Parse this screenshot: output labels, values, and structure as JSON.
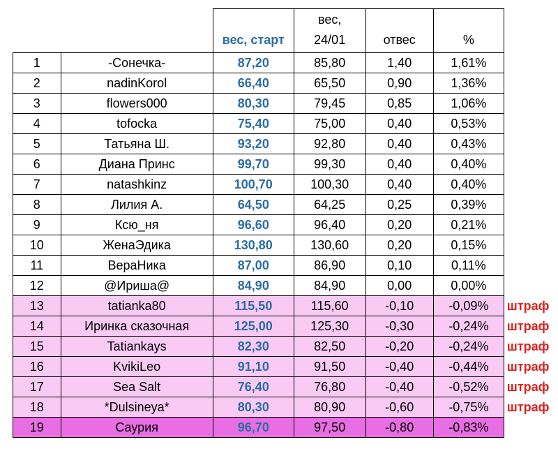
{
  "headers": {
    "num": "",
    "name": "",
    "start": "вес, старт",
    "current_line1": "вес,",
    "current_line2": "24/01",
    "loss": "отвес",
    "percent": "%"
  },
  "colors": {
    "start_text": "#2a6ca6",
    "penalty_text": "#e0201f",
    "penalty_row_bg": "#f8caf4",
    "last_row_bg": "#e96ee3"
  },
  "rows": [
    {
      "num": "1",
      "name": "-Сонечка-",
      "start": "87,20",
      "current": "85,80",
      "loss": "1,40",
      "percent": "1,61%",
      "note": ""
    },
    {
      "num": "2",
      "name": "nadinKorol",
      "start": "66,40",
      "current": "65,50",
      "loss": "0,90",
      "percent": "1,36%",
      "note": ""
    },
    {
      "num": "3",
      "name": "flowers000",
      "start": "80,30",
      "current": "79,45",
      "loss": "0,85",
      "percent": "1,06%",
      "note": ""
    },
    {
      "num": "4",
      "name": "tofocka",
      "start": "75,40",
      "current": "75,00",
      "loss": "0,40",
      "percent": "0,53%",
      "note": ""
    },
    {
      "num": "5",
      "name": "Татьяна Ш.",
      "start": "93,20",
      "current": "92,80",
      "loss": "0,40",
      "percent": "0,43%",
      "note": ""
    },
    {
      "num": "6",
      "name": "Диана Принс",
      "start": "99,70",
      "current": "99,30",
      "loss": "0,40",
      "percent": "0,40%",
      "note": ""
    },
    {
      "num": "7",
      "name": "natashkinz",
      "start": "100,70",
      "current": "100,30",
      "loss": "0,40",
      "percent": "0,40%",
      "note": ""
    },
    {
      "num": "8",
      "name": "Лилия А.",
      "start": "64,50",
      "current": "64,25",
      "loss": "0,25",
      "percent": "0,39%",
      "note": ""
    },
    {
      "num": "9",
      "name": "Ксю_ня",
      "start": "96,60",
      "current": "96,40",
      "loss": "0,20",
      "percent": "0,21%",
      "note": ""
    },
    {
      "num": "10",
      "name": "ЖенаЭдика",
      "start": "130,80",
      "current": "130,60",
      "loss": "0,20",
      "percent": "0,15%",
      "note": ""
    },
    {
      "num": "11",
      "name": "ВераНика",
      "start": "87,00",
      "current": "86,90",
      "loss": "0,10",
      "percent": "0,11%",
      "note": ""
    },
    {
      "num": "12",
      "name": "@Ириша@",
      "start": "84,90",
      "current": "84,90",
      "loss": "0,00",
      "percent": "0,00%",
      "note": ""
    },
    {
      "num": "13",
      "name": "tatianka80",
      "start": "115,50",
      "current": "115,60",
      "loss": "-0,10",
      "percent": "-0,09%",
      "note": "штраф"
    },
    {
      "num": "14",
      "name": "Иринка сказочная",
      "start": "125,00",
      "current": "125,30",
      "loss": "-0,30",
      "percent": "-0,24%",
      "note": "штраф"
    },
    {
      "num": "15",
      "name": "Tatiankays",
      "start": "82,30",
      "current": "82,50",
      "loss": "-0,20",
      "percent": "-0,24%",
      "note": "штраф"
    },
    {
      "num": "16",
      "name": "KvikiLeo",
      "start": "91,10",
      "current": "91,50",
      "loss": "-0,40",
      "percent": "-0,44%",
      "note": "штраф"
    },
    {
      "num": "17",
      "name": "Sea Salt",
      "start": "76,40",
      "current": "76,80",
      "loss": "-0,40",
      "percent": "-0,52%",
      "note": "штраф"
    },
    {
      "num": "18",
      "name": "*Dulsineya*",
      "start": "80,30",
      "current": "80,90",
      "loss": "-0,60",
      "percent": "-0,75%",
      "note": "штраф"
    },
    {
      "num": "19",
      "name": "Саурия",
      "start": "96,70",
      "current": "97,50",
      "loss": "-0,80",
      "percent": "-0,83%",
      "note": ""
    }
  ]
}
